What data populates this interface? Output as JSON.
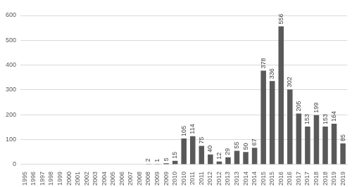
{
  "chart_data": {
    "type": "bar",
    "categories": [
      "1995",
      "1996",
      "1997",
      "1998",
      "1999",
      "2000",
      "2001",
      "2002",
      "2003",
      "2004",
      "2005",
      "2006",
      "2007",
      "2008",
      "2008",
      "2009",
      "2009",
      "2010",
      "2010",
      "2011",
      "2011",
      "2012",
      "2012",
      "2013",
      "2013",
      "2014",
      "2014",
      "2015",
      "2015",
      "2016",
      "2016",
      "2017",
      "2017",
      "2018",
      "2018",
      "2019",
      "2019"
    ],
    "values": [
      null,
      null,
      null,
      null,
      null,
      null,
      null,
      null,
      null,
      null,
      null,
      null,
      null,
      null,
      2,
      1,
      5,
      15,
      105,
      114,
      75,
      40,
      12,
      29,
      55,
      50,
      67,
      378,
      336,
      556,
      302,
      205,
      153,
      199,
      153,
      164,
      85
    ],
    "color": "#595959",
    "ylim": [
      0,
      600
    ],
    "yticks": [
      0,
      100,
      200,
      300,
      400,
      500,
      600
    ],
    "grid": true,
    "data_labels": true
  }
}
